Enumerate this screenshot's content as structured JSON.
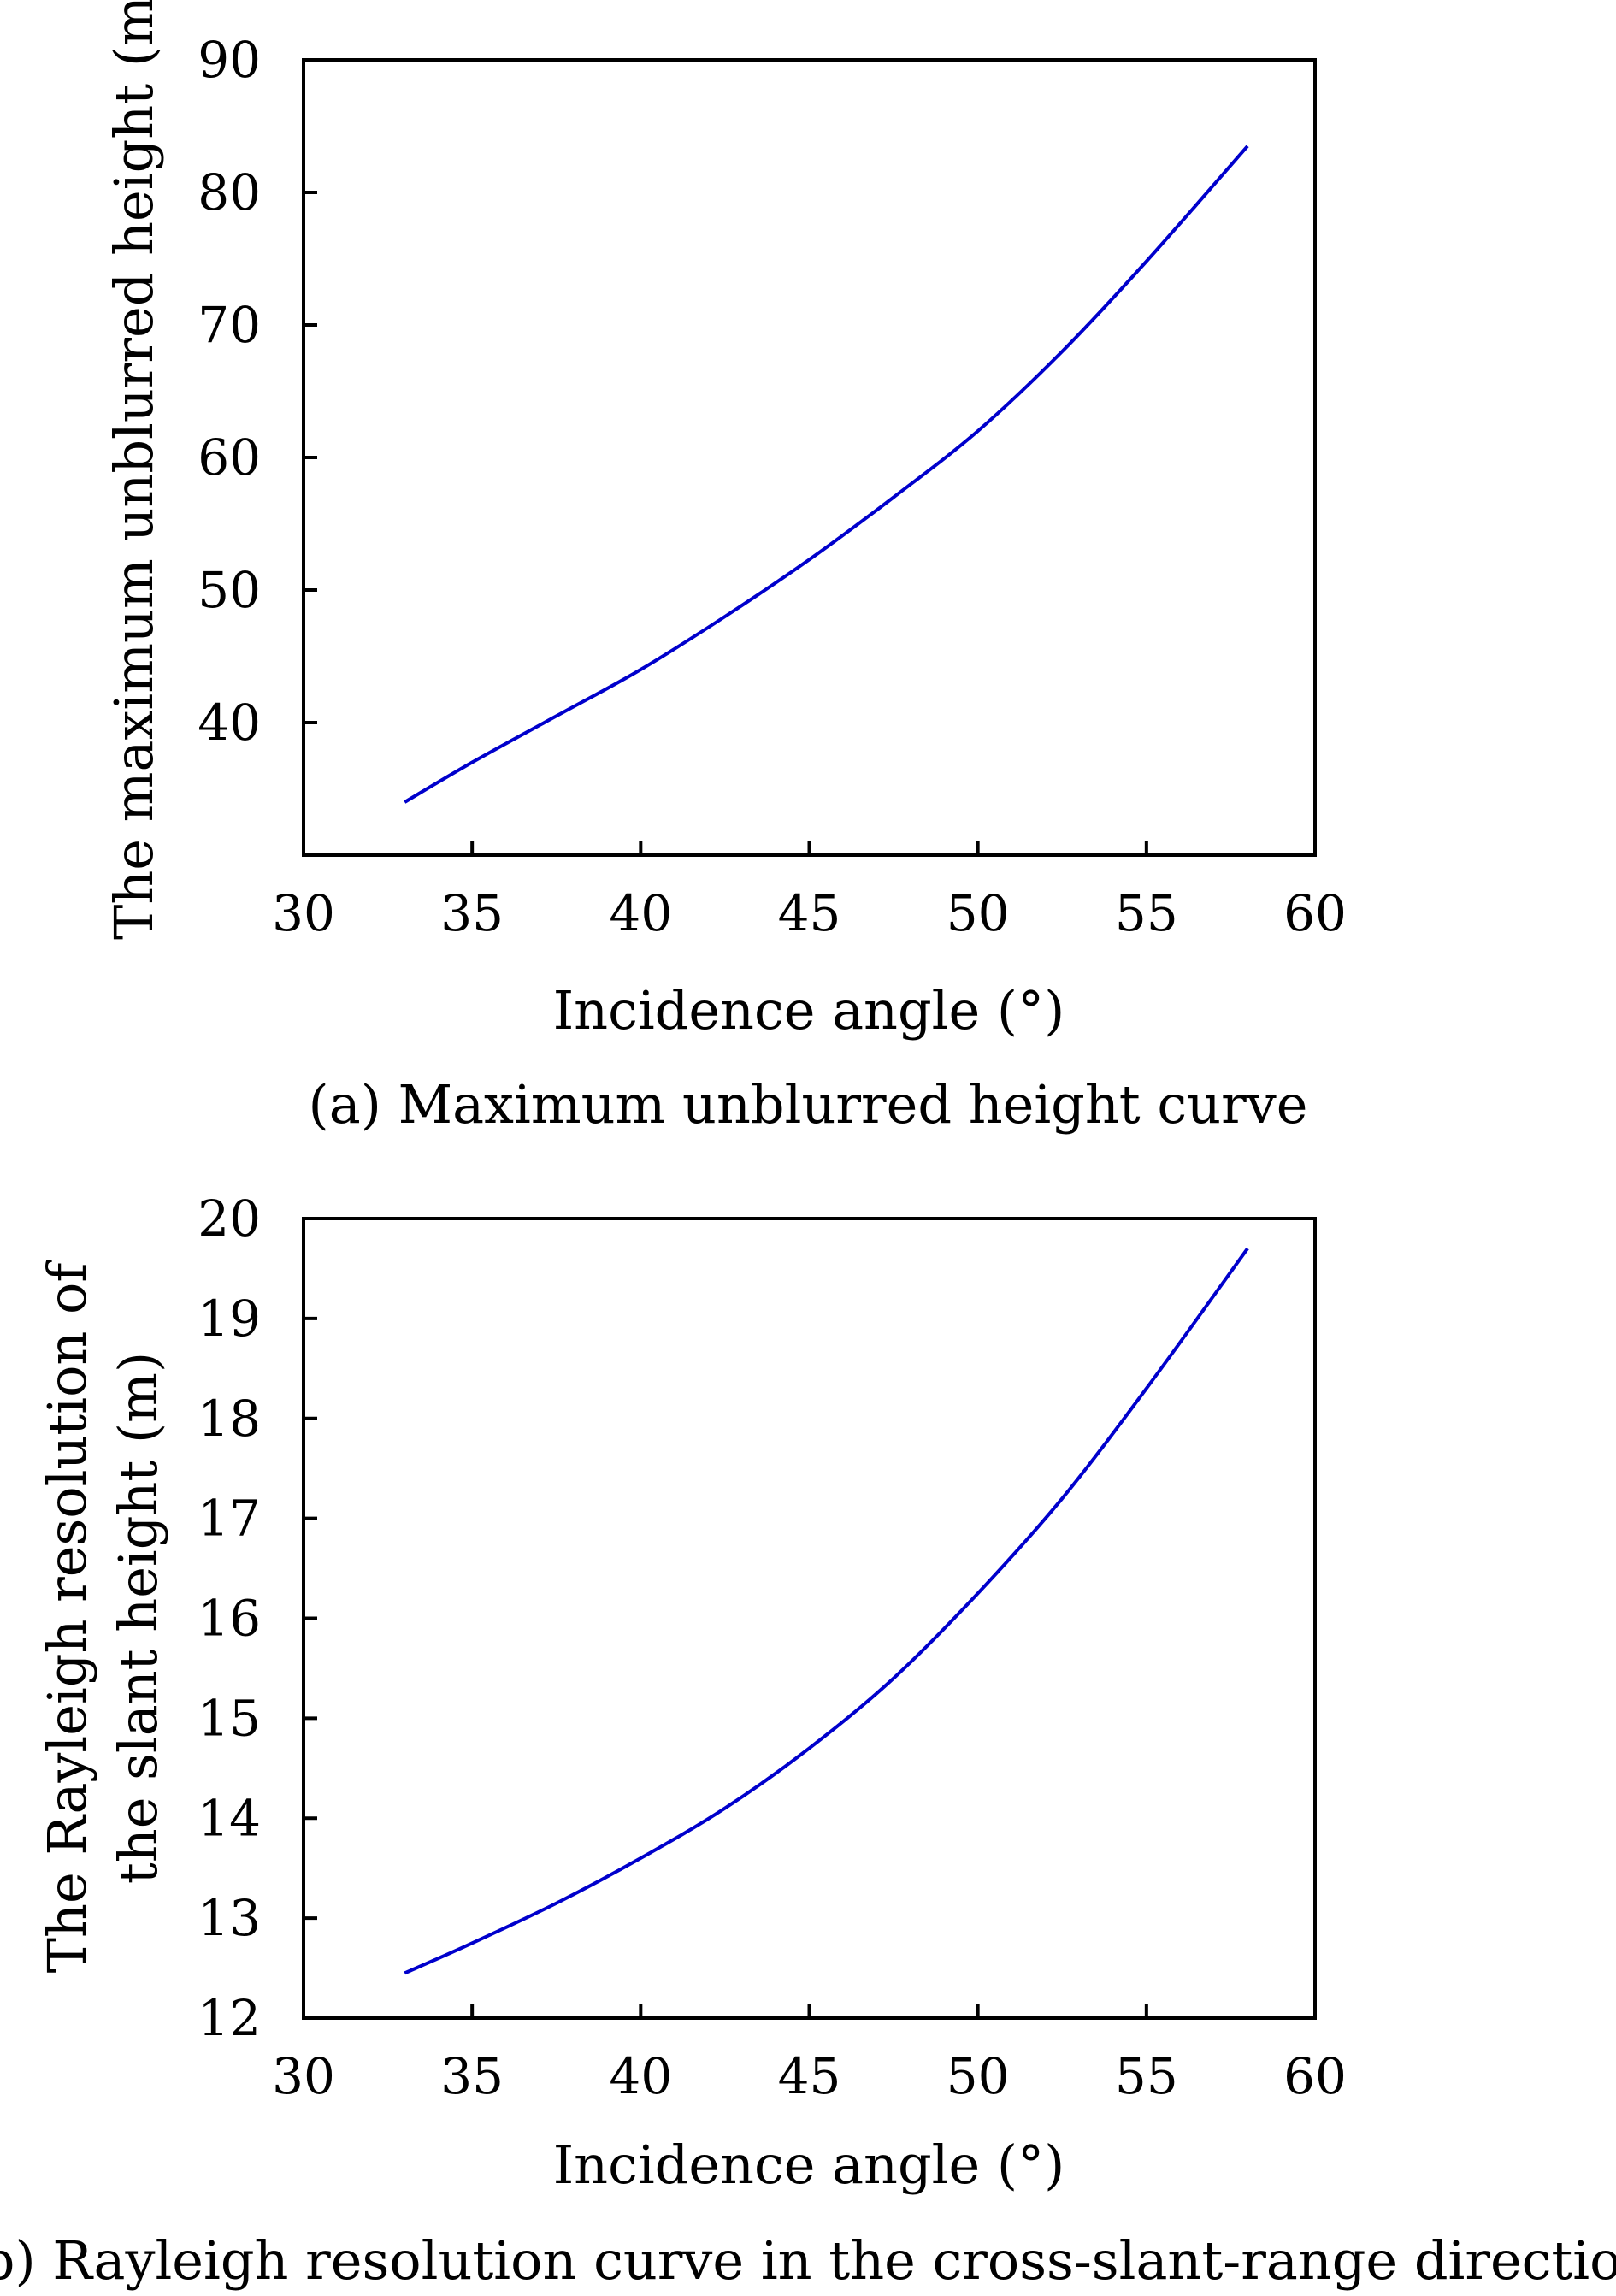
{
  "chart_data": [
    {
      "type": "line",
      "caption": "(a) Maximum unblurred height curve",
      "xlabel": "Incidence angle (°)",
      "ylabel": "The maximum unblurred height (m)",
      "xlim": [
        30,
        60
      ],
      "ylim": [
        30,
        90
      ],
      "xticks": [
        "30",
        "35",
        "40",
        "45",
        "50",
        "55",
        "60"
      ],
      "yticks": [
        "40",
        "50",
        "60",
        "70",
        "80",
        "90"
      ],
      "grid": false,
      "color": "#0000cc",
      "series": [
        {
          "x": [
            33,
            35,
            37.5,
            40,
            42.5,
            45,
            47.5,
            50,
            52.5,
            55,
            58
          ],
          "y": [
            34.0,
            37.0,
            40.5,
            44.0,
            48.0,
            52.3,
            57.0,
            62.0,
            68.0,
            74.8,
            83.5
          ]
        }
      ]
    },
    {
      "type": "line",
      "caption": "(b) Rayleigh resolution curve in the cross-slant-range direction",
      "xlabel": "Incidence angle (°)",
      "ylabel": [
        "The Rayleigh resolution of",
        "the slant height (m)"
      ],
      "xlim": [
        30,
        60
      ],
      "ylim": [
        12,
        20
      ],
      "xticks": [
        "30",
        "35",
        "40",
        "45",
        "50",
        "55",
        "60"
      ],
      "yticks": [
        "12",
        "13",
        "14",
        "15",
        "16",
        "17",
        "18",
        "19",
        "20"
      ],
      "grid": false,
      "color": "#0000cc",
      "series": [
        {
          "x": [
            33,
            35,
            37.5,
            40,
            42.5,
            45,
            47.5,
            50,
            52.5,
            55,
            58
          ],
          "y": [
            12.45,
            12.75,
            13.15,
            13.6,
            14.1,
            14.7,
            15.4,
            16.25,
            17.2,
            18.3,
            19.7
          ]
        }
      ]
    }
  ]
}
